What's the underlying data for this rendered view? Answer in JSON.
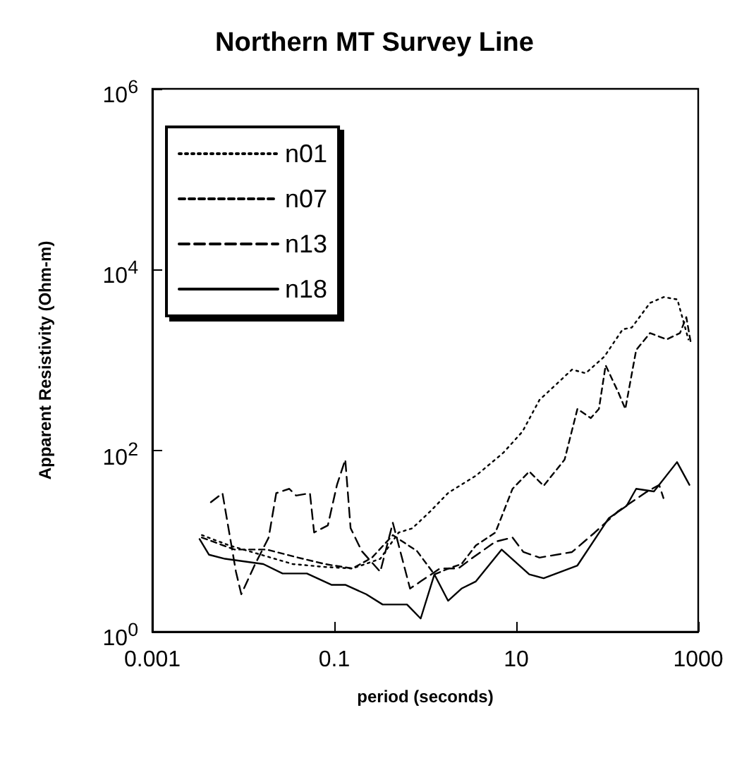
{
  "chart_data": {
    "type": "line",
    "title": "Northern MT Survey Line",
    "xlabel": "period (seconds)",
    "ylabel": "Apparent Resistivity (Ohm-m)",
    "log": "xy",
    "xlim": [
      0.001,
      1000
    ],
    "xticks": [
      0.001,
      0.1,
      10,
      1000
    ],
    "ylim": [
      1,
      1000000
    ],
    "yticks": [
      {
        "value": 1,
        "label": "10$^{0}$"
      },
      {
        "value": 100,
        "label": "10$^{2}$"
      },
      {
        "value": 10000,
        "label": "10$^{4}$"
      },
      {
        "value": 1000000,
        "label": "10$^{6}$"
      }
    ],
    "grid": false,
    "legend": "top left",
    "marker": "none",
    "series": [
      {
        "name": "n01",
        "color": "#000000",
        "line_style": "dotted",
        "x": [
          0.0035,
          0.007,
          0.035,
          0.079,
          0.158,
          0.32,
          0.51,
          0.72,
          1.14,
          1.8,
          3.6,
          7.2,
          11.7,
          18,
          29,
          41,
          58,
          93,
          148,
          186,
          295,
          417,
          590,
          780
        ],
        "values": [
          11.7,
          9,
          5.6,
          5.2,
          5,
          6.4,
          12.5,
          13.9,
          21.5,
          34.5,
          53,
          95,
          163,
          365,
          570,
          790,
          720,
          1100,
          2200,
          2300,
          4300,
          5000,
          4700,
          1700
        ]
      },
      {
        "name": "n07",
        "color": "#000000",
        "line_style": "dashed",
        "x": [
          0.0035,
          0.008,
          0.018,
          0.04,
          0.079,
          0.158,
          0.26,
          0.44,
          0.81,
          1.26,
          1.8,
          2.5,
          3.6,
          5.9,
          9.1,
          13.9,
          20,
          34,
          47,
          66,
          81,
          96,
          132,
          158,
          208,
          295,
          450,
          630,
          740,
          830
        ],
        "values": [
          11,
          8.1,
          8.1,
          6.6,
          5.6,
          5,
          6.6,
          11.7,
          7.8,
          4.3,
          5,
          5.6,
          9,
          12.5,
          38,
          59,
          41,
          80,
          290,
          230,
          290,
          880,
          445,
          290,
          1300,
          2000,
          1700,
          2000,
          3000,
          1550
        ]
      },
      {
        "name": "n13",
        "color": "#000000",
        "line_style": "dashed",
        "x": [
          0.0044,
          0.0059,
          0.0083,
          0.0095,
          0.0135,
          0.019,
          0.023,
          0.032,
          0.038,
          0.054,
          0.06,
          0.085,
          0.107,
          0.132,
          0.151,
          0.2,
          0.32,
          0.44,
          0.68,
          0.89,
          1.45,
          2.3,
          3.2,
          5.9,
          9.1,
          12,
          18,
          41,
          73,
          132,
          263,
          372,
          415
        ],
        "values": [
          27,
          34,
          4.6,
          2.6,
          5.6,
          11,
          34,
          38,
          32,
          34,
          12.5,
          15,
          42,
          80,
          14,
          7.8,
          4.6,
          16,
          3,
          3.6,
          5,
          5,
          6.4,
          9.9,
          11,
          7.6,
          6.6,
          7.6,
          12.5,
          21.5,
          34.5,
          42,
          30
        ]
      },
      {
        "name": "n18",
        "color": "#000000",
        "line_style": "solid",
        "x": [
          0.0033,
          0.0042,
          0.0063,
          0.0166,
          0.027,
          0.05,
          0.093,
          0.132,
          0.224,
          0.34,
          0.63,
          0.89,
          1.26,
          1.78,
          2.5,
          3.6,
          6.9,
          13.9,
          20,
          47,
          104,
          163,
          208,
          326,
          585,
          800
        ],
        "values": [
          10.6,
          7.1,
          6.4,
          5.6,
          4.4,
          4.4,
          3.3,
          3.3,
          2.6,
          2,
          2,
          1.4,
          4.3,
          2.2,
          3,
          3.6,
          8.1,
          4.3,
          3.9,
          5.4,
          18,
          24.6,
          38,
          35.5,
          75,
          42
        ]
      }
    ]
  }
}
